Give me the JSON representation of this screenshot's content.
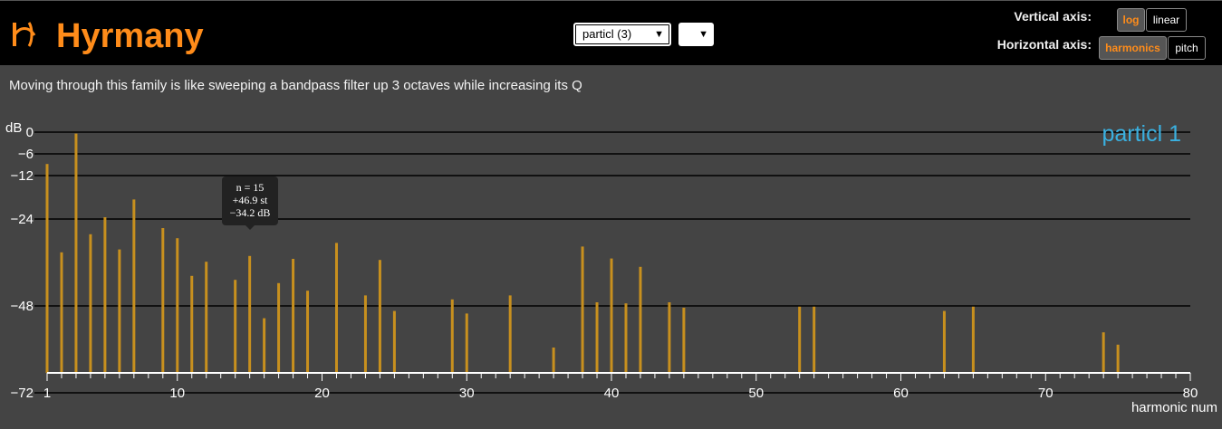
{
  "app": {
    "title": "Hyrmany"
  },
  "controls": {
    "family_select": {
      "value": "particl (3)"
    },
    "member_select": {
      "value": ""
    },
    "vertical_axis": {
      "label": "Vertical axis:",
      "options": [
        "log",
        "linear"
      ],
      "selected": "log"
    },
    "horizontal_axis": {
      "label": "Horizontal axis:",
      "options": [
        "harmonics",
        "pitch"
      ],
      "selected": "harmonics"
    }
  },
  "description": "Moving through this family is like sweeping a bandpass filter up 3 octaves while increasing its Q",
  "tooltip": {
    "n": "n = 15",
    "st": "+46.9 st",
    "db": "−34.2 dB"
  },
  "colors": {
    "accent": "#ff8c1a",
    "bar": "#c8901e",
    "series_label": "#3ab0e0",
    "background": "#444444",
    "header": "#000000"
  },
  "chart_data": {
    "type": "bar",
    "title": "particl 1",
    "xlabel": "harmonic num",
    "ylabel": "dB",
    "xlim": [
      1,
      80
    ],
    "ylim": [
      -80,
      0
    ],
    "y_ticks": [
      0,
      -6,
      -12,
      -24,
      -48,
      -72
    ],
    "y_tick_labels": [
      "0",
      "−6",
      "−12",
      "−24",
      "−48",
      "−72"
    ],
    "x_ticks": [
      1,
      10,
      20,
      30,
      40,
      50,
      60,
      70,
      80
    ],
    "grid": "horizontal at y ticks",
    "series": [
      {
        "name": "particl 1",
        "x": [
          1,
          2,
          3,
          4,
          5,
          6,
          7,
          9,
          10,
          11,
          12,
          14,
          15,
          16,
          17,
          18,
          19,
          21,
          23,
          24,
          25,
          29,
          30,
          33,
          36,
          38,
          39,
          40,
          41,
          42,
          44,
          45,
          53,
          54,
          63,
          65,
          74,
          75
        ],
        "y": [
          -8.8,
          -33.2,
          -0.4,
          -28.2,
          -23.5,
          -32.4,
          -18.6,
          -26.5,
          -29.3,
          -39.7,
          -35.8,
          -40.8,
          -34.2,
          -51.4,
          -41.7,
          -35.0,
          -43.8,
          -30.6,
          -45.1,
          -35.3,
          -49.4,
          -46.2,
          -50.1,
          -45.1,
          -59.5,
          -31.6,
          -47.0,
          -34.9,
          -47.3,
          -37.2,
          -47.0,
          -48.5,
          -48.2,
          -48.2,
          -49.4,
          -48.2,
          -55.3,
          -58.7
        ]
      }
    ]
  }
}
